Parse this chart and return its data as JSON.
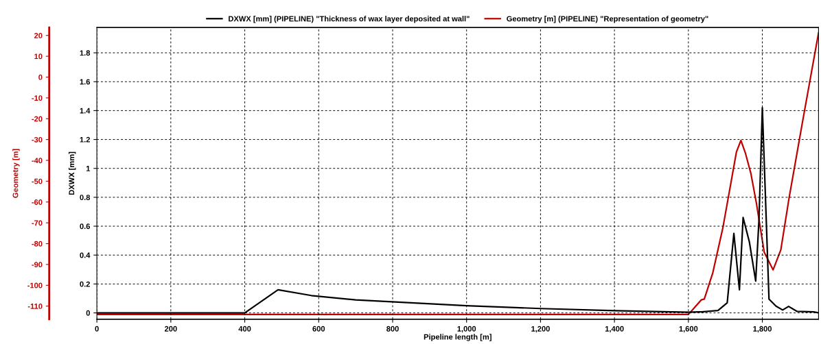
{
  "chart_data": {
    "type": "line",
    "xlabel": "Pipeline length [m]",
    "ylabel": "DXWX [mm]",
    "y2label": "Geometry [m]",
    "xlim": [
      0,
      1952
    ],
    "xticks": [
      0,
      200,
      400,
      600,
      800,
      {
        "value": 1000,
        "label": "1,000"
      },
      {
        "value": 1200,
        "label": "1,200"
      },
      {
        "value": 1400,
        "label": "1,400"
      },
      {
        "value": 1600,
        "label": "1,600"
      },
      {
        "value": 1800,
        "label": "1,800"
      }
    ],
    "ylim": [
      -0.044,
      1.975
    ],
    "yticks": [
      0,
      0.2,
      0.4,
      0.6,
      0.8,
      1,
      1.2,
      1.4,
      1.6,
      1.8
    ],
    "y2lim": [
      -116.3,
      23.8
    ],
    "y2ticks": [
      -110,
      -100,
      -90,
      -80,
      -70,
      -60,
      -50,
      -40,
      -30,
      -20,
      -10,
      0,
      10,
      20
    ],
    "grid": true,
    "legend": "top",
    "line_style": "solid",
    "marker": "none",
    "series": [
      {
        "name": "DXWX [mm] (PIPELINE) \"Thickness of wax layer deposited at wall\"",
        "color": "#000000",
        "x": [
          0,
          400,
          490,
          580,
          700,
          1000,
          1200,
          1400,
          1600,
          1635,
          1680,
          1705,
          1723,
          1738,
          1748,
          1765,
          1782,
          1791,
          1800,
          1818,
          1837,
          1855,
          1871,
          1894,
          1939,
          1952
        ],
        "values": [
          0,
          0,
          0.16,
          0.12,
          0.09,
          0.05,
          0.03,
          0.015,
          0.005,
          0.007,
          0.016,
          0.07,
          0.55,
          0.16,
          0.66,
          0.49,
          0.22,
          0.65,
          1.42,
          0.095,
          0.047,
          0.02,
          0.045,
          0.01,
          0.007,
          0
        ]
      },
      {
        "name": "Geometry [m] (PIPELINE) \"Representation of geometry\"",
        "color": "#c00000",
        "axis": "y2",
        "x": [
          0,
          1600,
          1635,
          1643,
          1666,
          1693,
          1730,
          1742,
          1754,
          1769,
          1784,
          1805,
          1829,
          1850,
          1872,
          1908,
          1952
        ],
        "values": [
          -114,
          -114,
          -107,
          -106.6,
          -94,
          -72.6,
          -35.9,
          -30.4,
          -36.4,
          -46.3,
          -60.6,
          -84.1,
          -92.6,
          -83,
          -58.4,
          -22.2,
          21.2
        ]
      }
    ]
  }
}
